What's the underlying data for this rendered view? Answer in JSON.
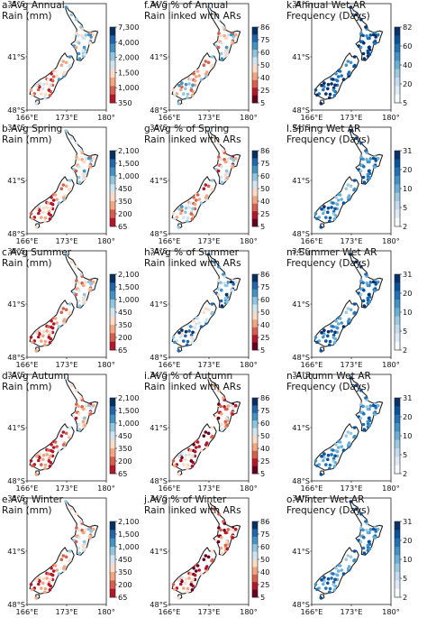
{
  "axes": {
    "lat_labels": [
      "34°S",
      "41°S",
      "48°S"
    ],
    "lon_labels": [
      "166°E",
      "173°E",
      "180°"
    ]
  },
  "colors": {
    "rain_scale": [
      "#b2182b",
      "#d6604d",
      "#f4a582",
      "#fddbc7",
      "#d1e5f0",
      "#92c5de",
      "#4393c3",
      "#2166ac",
      "#053061"
    ],
    "pct_scale": [
      "#67001f",
      "#b2182b",
      "#d6604d",
      "#f4a582",
      "#fddbc7",
      "#d1e5f0",
      "#92c5de",
      "#4393c3",
      "#2166ac",
      "#053061"
    ],
    "freq_scale": [
      "#f7fbff",
      "#deebf7",
      "#c6dbef",
      "#9ecae1",
      "#6baed6",
      "#4292c6",
      "#2171b5",
      "#08519c",
      "#08306b"
    ],
    "coastline": "#222222"
  },
  "panels": [
    {
      "title": "a.Avg Annual\nRain (mm)",
      "ticks": [
        "7,300",
        "4,000",
        "2,000",
        "1,500",
        "1,000",
        "350"
      ],
      "scale": "rain",
      "bias": 0.55
    },
    {
      "title": "f.Avg % of Annual\nRain linked with ARs",
      "ticks": [
        "86",
        "75",
        "60",
        "50",
        "40",
        "25",
        "5"
      ],
      "scale": "pct",
      "bias": 0.5
    },
    {
      "title": "k.Annual Wet AR\nFrequency (Days)",
      "ticks": [
        "82",
        "60",
        "40",
        "20",
        "5"
      ],
      "scale": "freq",
      "bias": 0.85
    },
    {
      "title": "b.Avg Spring\nRain (mm)",
      "ticks": [
        "2,100",
        "1,500",
        "1,000",
        "450",
        "350",
        "200",
        "65"
      ],
      "scale": "rain",
      "bias": 0.45
    },
    {
      "title": "g.Avg % of Spring\nRain linked with ARs",
      "ticks": [
        "86",
        "75",
        "60",
        "50",
        "40",
        "25",
        "5"
      ],
      "scale": "pct",
      "bias": 0.45
    },
    {
      "title": "l.Spring Wet AR\nFrequency (Days)",
      "ticks": [
        "31",
        "20",
        "10",
        "5",
        "2"
      ],
      "scale": "freq",
      "bias": 0.65
    },
    {
      "title": "c.Avg Summer\nRain (mm)",
      "ticks": [
        "2,100",
        "1,500",
        "1,000",
        "450",
        "350",
        "200",
        "65"
      ],
      "scale": "rain",
      "bias": 0.4
    },
    {
      "title": "h.Avg % of Summer\nRain linked with ARs",
      "ticks": [
        "86",
        "75",
        "60",
        "50",
        "40",
        "25",
        "5"
      ],
      "scale": "pct",
      "bias": 0.7
    },
    {
      "title": "m.Summer Wet AR\nFrequency (Days)",
      "ticks": [
        "31",
        "20",
        "10",
        "5",
        "2"
      ],
      "scale": "freq",
      "bias": 0.7
    },
    {
      "title": "d.Avg Autumn\nRain (mm)",
      "ticks": [
        "2,100",
        "1,500",
        "1,000",
        "450",
        "350",
        "200",
        "65"
      ],
      "scale": "rain",
      "bias": 0.35
    },
    {
      "title": "i.Avg % of Autumn\nRain linked with ARs",
      "ticks": [
        "86",
        "75",
        "60",
        "50",
        "40",
        "25",
        "5"
      ],
      "scale": "pct",
      "bias": 0.3
    },
    {
      "title": "n.Autumn Wet AR\nFrequency (Days)",
      "ticks": [
        "31",
        "20",
        "10",
        "5",
        "2"
      ],
      "scale": "freq",
      "bias": 0.62
    },
    {
      "title": "e.Avg Winter\nRain (mm)",
      "ticks": [
        "2,100",
        "1,500",
        "1,000",
        "450",
        "350",
        "200",
        "65"
      ],
      "scale": "rain",
      "bias": 0.4
    },
    {
      "title": "j.Avg % of Winter\nRain linked with ARs",
      "ticks": [
        "86",
        "75",
        "60",
        "50",
        "40",
        "25",
        "5"
      ],
      "scale": "pct",
      "bias": 0.25
    },
    {
      "title": "o.Winter Wet AR\nFrequency (Days)",
      "ticks": [
        "31",
        "20",
        "10",
        "5",
        "2"
      ],
      "scale": "freq",
      "bias": 0.62
    }
  ]
}
